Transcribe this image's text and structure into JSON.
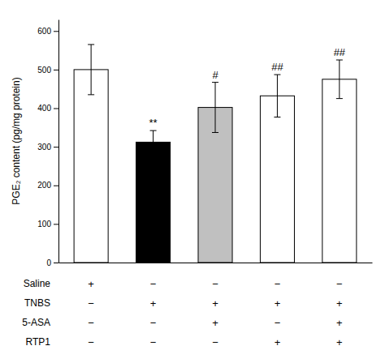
{
  "chart_data": {
    "type": "bar",
    "ylabel": "PGE₂ content (pg/mg protein)",
    "categories": [
      null,
      null,
      null,
      null,
      null
    ],
    "values": [
      500,
      312,
      402,
      432,
      475
    ],
    "errors": [
      65,
      30,
      65,
      55,
      50
    ],
    "colors": [
      "#ffffff",
      "#000000",
      "#c0c0c0",
      "#ffffff",
      "#ffffff"
    ],
    "annotations": [
      null,
      "**",
      "#",
      "##",
      "##"
    ],
    "ylim": [
      0,
      630
    ],
    "yticks": [
      0,
      100,
      200,
      300,
      400,
      500,
      600
    ],
    "grid": false,
    "table": {
      "rows": [
        "Saline",
        "TNBS",
        "5-ASA",
        "RTP1"
      ],
      "cells": [
        [
          "+",
          "−",
          "−",
          "−",
          "−"
        ],
        [
          "−",
          "+",
          "+",
          "+",
          "+"
        ],
        [
          "−",
          "−",
          "+",
          "−",
          "+"
        ],
        [
          "−",
          "−",
          "−",
          "+",
          "+"
        ]
      ]
    }
  }
}
